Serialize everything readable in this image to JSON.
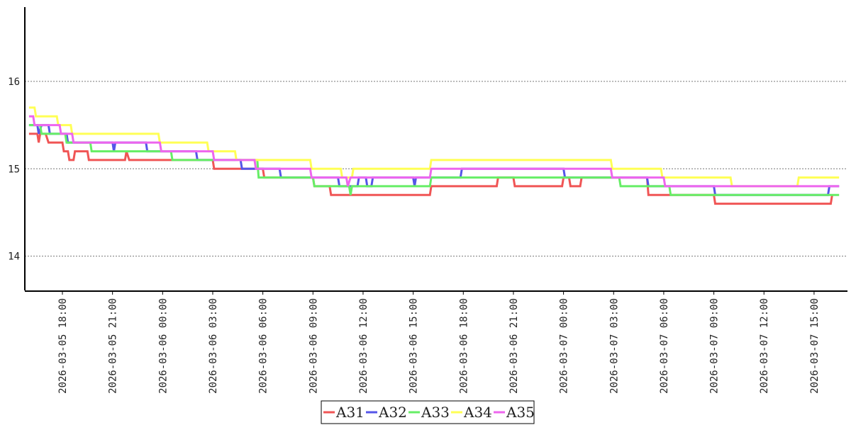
{
  "chart_data": {
    "type": "line",
    "title": "",
    "xlabel": "",
    "ylabel": "",
    "ylim": [
      13.6,
      16.85
    ],
    "xlim": [
      "2026-03-05 15:45",
      "2026-03-07 17:00"
    ],
    "grid": true,
    "legend_placement": "bottom-center",
    "y_ticks": [
      "14",
      "15",
      "16"
    ],
    "x_ticks": [
      "2026-03-05 18:00",
      "2026-03-05 21:00",
      "2026-03-06 00:00",
      "2026-03-06 03:00",
      "2026-03-06 06:00",
      "2026-03-06 09:00",
      "2026-03-06 12:00",
      "2026-03-06 15:00",
      "2026-03-06 18:00",
      "2026-03-06 21:00",
      "2026-03-07 00:00",
      "2026-03-07 03:00",
      "2026-03-07 06:00",
      "2026-03-07 09:00",
      "2026-03-07 12:00",
      "2026-03-07 15:00"
    ],
    "series": [
      {
        "name": "A31",
        "color": "#f05555",
        "points": [
          [
            "2026-03-05 16:00",
            15.4
          ],
          [
            "2026-03-05 16:30",
            15.4
          ],
          [
            "2026-03-05 16:35",
            15.3
          ],
          [
            "2026-03-05 16:40",
            15.4
          ],
          [
            "2026-03-05 17:00",
            15.4
          ],
          [
            "2026-03-05 17:10",
            15.3
          ],
          [
            "2026-03-05 18:00",
            15.3
          ],
          [
            "2026-03-05 18:05",
            15.2
          ],
          [
            "2026-03-05 18:20",
            15.2
          ],
          [
            "2026-03-05 18:25",
            15.1
          ],
          [
            "2026-03-05 18:40",
            15.1
          ],
          [
            "2026-03-05 18:45",
            15.2
          ],
          [
            "2026-03-05 19:30",
            15.2
          ],
          [
            "2026-03-05 19:35",
            15.1
          ],
          [
            "2026-03-05 21:45",
            15.1
          ],
          [
            "2026-03-05 21:50",
            15.2
          ],
          [
            "2026-03-05 22:00",
            15.1
          ],
          [
            "2026-03-06 03:00",
            15.1
          ],
          [
            "2026-03-06 03:05",
            15.0
          ],
          [
            "2026-03-06 06:00",
            15.0
          ],
          [
            "2026-03-06 06:05",
            14.9
          ],
          [
            "2026-03-06 09:00",
            14.9
          ],
          [
            "2026-03-06 09:05",
            14.8
          ],
          [
            "2026-03-06 10:00",
            14.8
          ],
          [
            "2026-03-06 10:05",
            14.7
          ],
          [
            "2026-03-06 16:00",
            14.7
          ],
          [
            "2026-03-06 16:05",
            14.8
          ],
          [
            "2026-03-06 20:00",
            14.8
          ],
          [
            "2026-03-06 20:05",
            14.9
          ],
          [
            "2026-03-06 21:00",
            14.9
          ],
          [
            "2026-03-06 21:05",
            14.8
          ],
          [
            "2026-03-06 23:55",
            14.8
          ],
          [
            "2026-03-07 00:00",
            14.9
          ],
          [
            "2026-03-07 00:20",
            14.9
          ],
          [
            "2026-03-07 00:25",
            14.8
          ],
          [
            "2026-03-07 01:00",
            14.8
          ],
          [
            "2026-03-07 01:05",
            14.9
          ],
          [
            "2026-03-07 05:00",
            14.9
          ],
          [
            "2026-03-07 05:05",
            14.7
          ],
          [
            "2026-03-07 09:00",
            14.7
          ],
          [
            "2026-03-07 09:05",
            14.6
          ],
          [
            "2026-03-07 16:00",
            14.6
          ],
          [
            "2026-03-07 16:05",
            14.7
          ]
        ]
      },
      {
        "name": "A32",
        "color": "#5555e8",
        "points": [
          [
            "2026-03-05 16:00",
            15.5
          ],
          [
            "2026-03-05 16:30",
            15.5
          ],
          [
            "2026-03-05 16:35",
            15.4
          ],
          [
            "2026-03-05 16:45",
            15.5
          ],
          [
            "2026-03-05 17:10",
            15.5
          ],
          [
            "2026-03-05 17:15",
            15.4
          ],
          [
            "2026-03-05 18:15",
            15.4
          ],
          [
            "2026-03-05 18:20",
            15.3
          ],
          [
            "2026-03-05 21:00",
            15.3
          ],
          [
            "2026-03-05 21:05",
            15.2
          ],
          [
            "2026-03-05 21:10",
            15.3
          ],
          [
            "2026-03-05 23:00",
            15.3
          ],
          [
            "2026-03-05 23:05",
            15.2
          ],
          [
            "2026-03-06 02:00",
            15.2
          ],
          [
            "2026-03-06 02:05",
            15.1
          ],
          [
            "2026-03-06 04:40",
            15.1
          ],
          [
            "2026-03-06 04:45",
            15.0
          ],
          [
            "2026-03-06 07:00",
            15.0
          ],
          [
            "2026-03-06 07:05",
            14.9
          ],
          [
            "2026-03-06 10:30",
            14.9
          ],
          [
            "2026-03-06 10:35",
            14.8
          ],
          [
            "2026-03-06 11:40",
            14.8
          ],
          [
            "2026-03-06 11:45",
            14.9
          ],
          [
            "2026-03-06 12:10",
            14.9
          ],
          [
            "2026-03-06 12:15",
            14.8
          ],
          [
            "2026-03-06 12:30",
            14.8
          ],
          [
            "2026-03-06 12:35",
            14.9
          ],
          [
            "2026-03-06 15:00",
            14.9
          ],
          [
            "2026-03-06 15:05",
            14.8
          ],
          [
            "2026-03-06 15:10",
            14.9
          ],
          [
            "2026-03-06 17:50",
            14.9
          ],
          [
            "2026-03-06 17:55",
            15.0
          ],
          [
            "2026-03-07 00:00",
            15.0
          ],
          [
            "2026-03-07 00:05",
            14.9
          ],
          [
            "2026-03-07 05:00",
            14.9
          ],
          [
            "2026-03-07 05:05",
            14.8
          ],
          [
            "2026-03-07 09:00",
            14.8
          ],
          [
            "2026-03-07 09:05",
            14.7
          ],
          [
            "2026-03-07 15:50",
            14.7
          ],
          [
            "2026-03-07 15:55",
            14.8
          ],
          [
            "2026-03-07 16:30",
            14.8
          ]
        ]
      },
      {
        "name": "A33",
        "color": "#66ee66",
        "points": [
          [
            "2026-03-05 16:00",
            15.5
          ],
          [
            "2026-03-05 16:40",
            15.5
          ],
          [
            "2026-03-05 16:45",
            15.4
          ],
          [
            "2026-03-05 18:10",
            15.4
          ],
          [
            "2026-03-05 18:15",
            15.3
          ],
          [
            "2026-03-05 19:40",
            15.3
          ],
          [
            "2026-03-05 19:45",
            15.2
          ],
          [
            "2026-03-06 00:30",
            15.2
          ],
          [
            "2026-03-06 00:35",
            15.1
          ],
          [
            "2026-03-06 05:40",
            15.1
          ],
          [
            "2026-03-06 05:45",
            14.9
          ],
          [
            "2026-03-06 09:00",
            14.9
          ],
          [
            "2026-03-06 09:05",
            14.8
          ],
          [
            "2026-03-06 11:10",
            14.8
          ],
          [
            "2026-03-06 11:15",
            14.7
          ],
          [
            "2026-03-06 11:20",
            14.8
          ],
          [
            "2026-03-06 16:00",
            14.8
          ],
          [
            "2026-03-06 16:05",
            14.9
          ],
          [
            "2026-03-07 03:20",
            14.9
          ],
          [
            "2026-03-07 03:25",
            14.8
          ],
          [
            "2026-03-07 06:20",
            14.8
          ],
          [
            "2026-03-07 06:25",
            14.7
          ],
          [
            "2026-03-07 16:30",
            14.7
          ]
        ]
      },
      {
        "name": "A34",
        "color": "#ffff55",
        "points": [
          [
            "2026-03-05 16:00",
            15.7
          ],
          [
            "2026-03-05 16:20",
            15.7
          ],
          [
            "2026-03-05 16:25",
            15.6
          ],
          [
            "2026-03-05 17:40",
            15.6
          ],
          [
            "2026-03-05 17:45",
            15.5
          ],
          [
            "2026-03-05 18:30",
            15.5
          ],
          [
            "2026-03-05 18:35",
            15.4
          ],
          [
            "2026-03-05 23:45",
            15.4
          ],
          [
            "2026-03-05 23:50",
            15.3
          ],
          [
            "2026-03-06 02:40",
            15.3
          ],
          [
            "2026-03-06 02:45",
            15.2
          ],
          [
            "2026-03-06 04:20",
            15.2
          ],
          [
            "2026-03-06 04:25",
            15.1
          ],
          [
            "2026-03-06 08:50",
            15.1
          ],
          [
            "2026-03-06 08:55",
            15.0
          ],
          [
            "2026-03-06 10:40",
            15.0
          ],
          [
            "2026-03-06 10:45",
            14.9
          ],
          [
            "2026-03-06 11:20",
            14.9
          ],
          [
            "2026-03-06 11:25",
            15.0
          ],
          [
            "2026-03-06 16:00",
            15.0
          ],
          [
            "2026-03-06 16:05",
            15.1
          ],
          [
            "2026-03-07 02:50",
            15.1
          ],
          [
            "2026-03-07 02:55",
            15.0
          ],
          [
            "2026-03-07 05:50",
            15.0
          ],
          [
            "2026-03-07 05:55",
            14.9
          ],
          [
            "2026-03-07 10:00",
            14.9
          ],
          [
            "2026-03-07 10:05",
            14.8
          ],
          [
            "2026-03-07 14:00",
            14.8
          ],
          [
            "2026-03-07 14:05",
            14.9
          ],
          [
            "2026-03-07 16:30",
            14.9
          ]
        ]
      },
      {
        "name": "A35",
        "color": "#ee66ee",
        "points": [
          [
            "2026-03-05 16:00",
            15.6
          ],
          [
            "2026-03-05 16:15",
            15.6
          ],
          [
            "2026-03-05 16:20",
            15.5
          ],
          [
            "2026-03-05 17:50",
            15.5
          ],
          [
            "2026-03-05 17:55",
            15.4
          ],
          [
            "2026-03-05 18:35",
            15.4
          ],
          [
            "2026-03-05 18:40",
            15.3
          ],
          [
            "2026-03-05 23:50",
            15.3
          ],
          [
            "2026-03-05 23:55",
            15.2
          ],
          [
            "2026-03-06 03:00",
            15.2
          ],
          [
            "2026-03-06 03:05",
            15.1
          ],
          [
            "2026-03-06 05:30",
            15.1
          ],
          [
            "2026-03-06 05:35",
            15.0
          ],
          [
            "2026-03-06 08:50",
            15.0
          ],
          [
            "2026-03-06 08:55",
            14.9
          ],
          [
            "2026-03-06 11:00",
            14.9
          ],
          [
            "2026-03-06 11:05",
            14.8
          ],
          [
            "2026-03-06 11:15",
            14.9
          ],
          [
            "2026-03-06 16:00",
            14.9
          ],
          [
            "2026-03-06 16:05",
            15.0
          ],
          [
            "2026-03-07 02:50",
            15.0
          ],
          [
            "2026-03-07 02:55",
            14.9
          ],
          [
            "2026-03-07 06:00",
            14.9
          ],
          [
            "2026-03-07 06:05",
            14.8
          ],
          [
            "2026-03-07 16:30",
            14.8
          ]
        ]
      }
    ]
  }
}
